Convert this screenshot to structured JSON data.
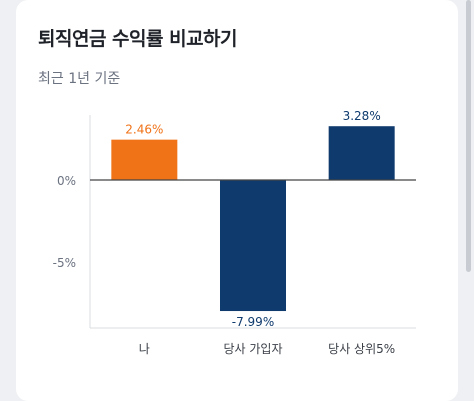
{
  "header": {
    "title": "퇴직연금 수익률 비교하기",
    "subtitle": "최근 1년 기준"
  },
  "colors": {
    "me": "#f07318",
    "others": "#0e3a6d",
    "axis": "#444444",
    "label": "#6b7280"
  },
  "chart_data": {
    "type": "bar",
    "title": "퇴직연금 수익률 비교하기",
    "subtitle": "최근 1년 기준",
    "categories": [
      "나",
      "당사 가입자",
      "당사 상위5%"
    ],
    "values": [
      2.46,
      -7.99,
      3.28
    ],
    "value_labels": [
      "2.46%",
      "-7.99%",
      "3.28%"
    ],
    "bar_colors": [
      "#f07318",
      "#0e3a6d",
      "#0e3a6d"
    ],
    "ytick_labels": [
      "0%",
      "-5%"
    ],
    "yticks": [
      0,
      -5
    ],
    "ylim": [
      -9,
      4.5
    ],
    "xlabel": "",
    "ylabel": "",
    "grid": false
  }
}
